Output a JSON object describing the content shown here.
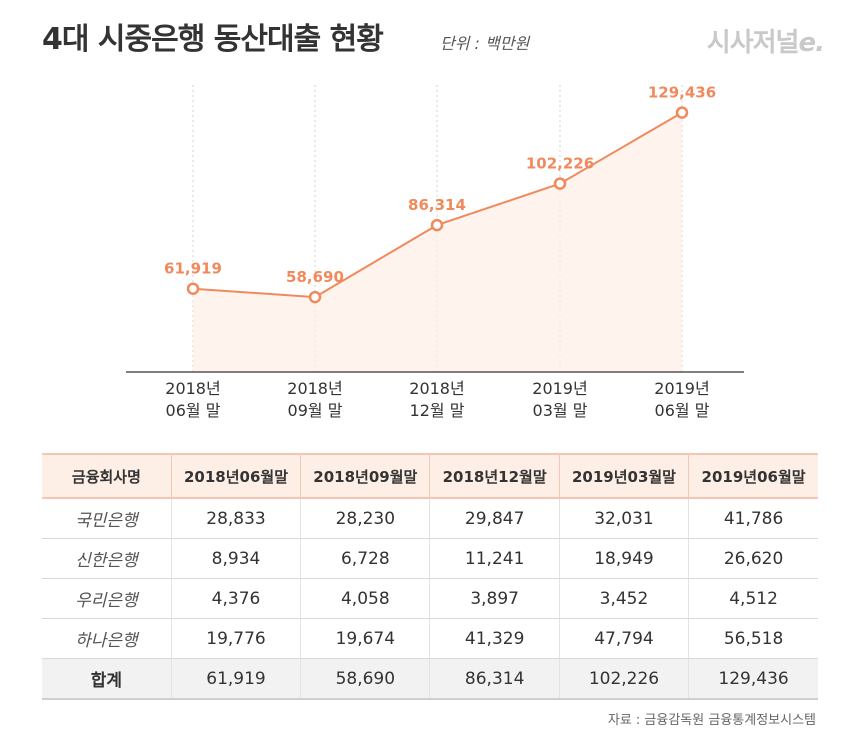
{
  "header": {
    "title": "4대 시중은행 동산대출 현황",
    "unit": "단위 : 백만원",
    "logo": "시사저널",
    "logo_suffix": "e."
  },
  "colors": {
    "accent": "#f08a5d",
    "area_fill": "#fdeee6",
    "table_header_bg": "#fdeee6",
    "total_row_bg": "#f2f2f2",
    "logo": "#c9c9c9"
  },
  "chart_data": {
    "type": "line",
    "title": "4대 시중은행 동산대출 현황",
    "unit": "단위 : 백만원",
    "x_labels": [
      [
        "2018년",
        "06월 말"
      ],
      [
        "2018년",
        "09월 말"
      ],
      [
        "2018년",
        "12월 말"
      ],
      [
        "2019년",
        "03월 말"
      ],
      [
        "2019년",
        "06월 말"
      ]
    ],
    "values": [
      61919,
      58690,
      86314,
      102226,
      129436
    ],
    "value_labels": [
      "61,919",
      "58,690",
      "86,314",
      "102,226",
      "129,436"
    ],
    "ylim": [
      30000,
      140000
    ],
    "grid": "vertical dotted",
    "area_fill": true
  },
  "table": {
    "headers": [
      "금융회사명",
      "2018년06월말",
      "2018년09월말",
      "2018년12월말",
      "2019년03월말",
      "2019년06월말"
    ],
    "rows": [
      {
        "bank": "국민은행",
        "values": [
          "28,833",
          "28,230",
          "29,847",
          "32,031",
          "41,786"
        ]
      },
      {
        "bank": "신한은행",
        "values": [
          "8,934",
          "6,728",
          "11,241",
          "18,949",
          "26,620"
        ]
      },
      {
        "bank": "우리은행",
        "values": [
          "4,376",
          "4,058",
          "3,897",
          "3,452",
          "4,512"
        ]
      },
      {
        "bank": "하나은행",
        "values": [
          "19,776",
          "19,674",
          "41,329",
          "47,794",
          "56,518"
        ]
      }
    ],
    "total": {
      "bank": "합계",
      "values": [
        "61,919",
        "58,690",
        "86,314",
        "102,226",
        "129,436"
      ]
    }
  },
  "source": "자료 : 금융감독원 금융통계정보시스템"
}
